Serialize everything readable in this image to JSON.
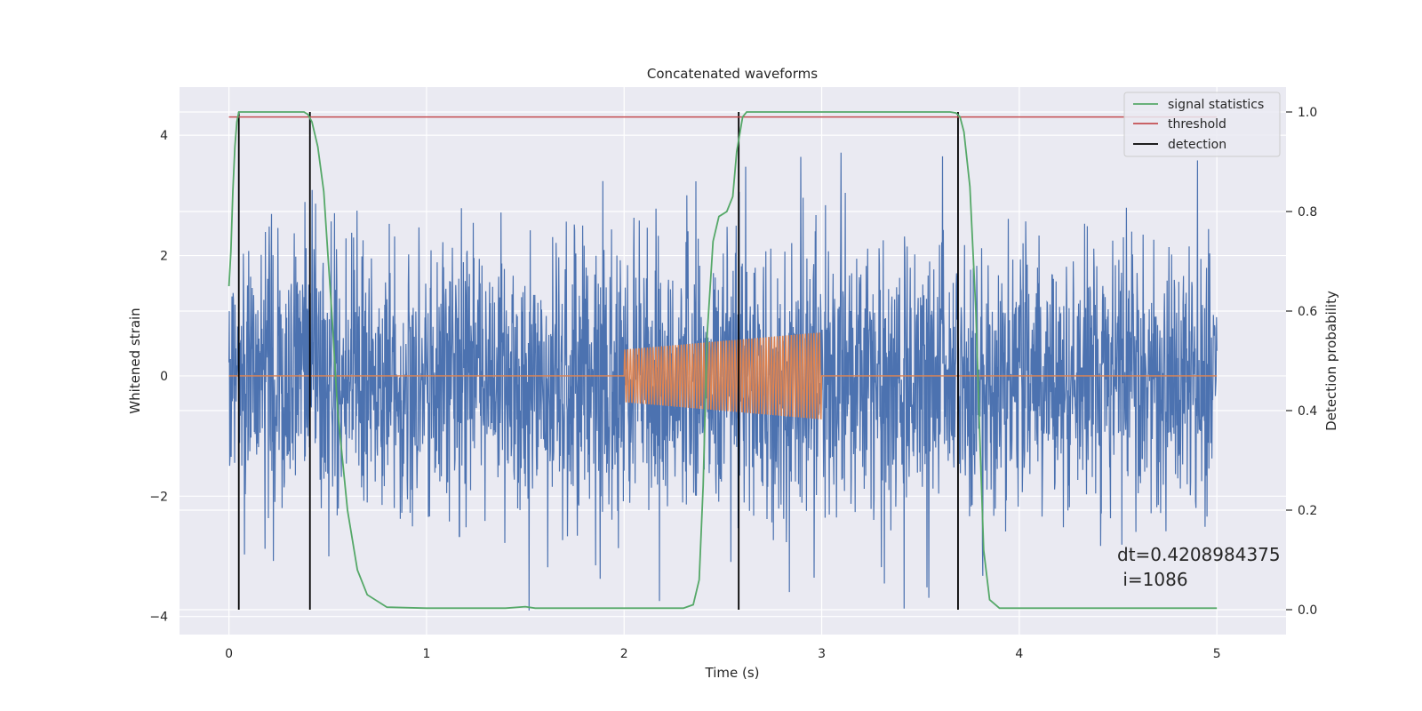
{
  "chart_data": {
    "type": "line",
    "title": "Concatenated waveforms",
    "xlabel": "Time (s)",
    "ylabel": "Whitened strain",
    "y2label": "Detection probability",
    "xlim": [
      -0.25,
      5.35
    ],
    "ylim": [
      -4.3,
      4.8
    ],
    "y2lim": [
      -0.05,
      1.05
    ],
    "xticks": [
      0,
      1,
      2,
      3,
      4,
      5
    ],
    "yticks": [
      -4,
      -2,
      0,
      2,
      4
    ],
    "y2ticks": [
      0.0,
      0.2,
      0.4,
      0.6,
      0.8,
      1.0
    ],
    "xtick_labels": [
      "0",
      "1",
      "2",
      "3",
      "4",
      "5"
    ],
    "ytick_labels": [
      "−4",
      "−2",
      "0",
      "2",
      "4"
    ],
    "y2tick_labels": [
      "0.0",
      "0.2",
      "0.4",
      "0.6",
      "0.8",
      "1.0"
    ],
    "grid": true,
    "legend_position": "top-right",
    "colors": {
      "noise": "#4c72b0",
      "template": "#dd8452",
      "signal": "#55a868",
      "threshold": "#c44e52",
      "detection": "#000000",
      "plot_bg": "#eaeaf2",
      "grid": "#ffffff"
    },
    "series": [
      {
        "name": "signal statistics",
        "axis": "right",
        "x": [
          0.0,
          0.01,
          0.02,
          0.03,
          0.04,
          0.05,
          0.07,
          0.1,
          0.2,
          0.3,
          0.38,
          0.4,
          0.42,
          0.45,
          0.48,
          0.5,
          0.52,
          0.55,
          0.6,
          0.65,
          0.7,
          0.8,
          1.0,
          1.4,
          1.5,
          1.55,
          1.6,
          2.0,
          2.3,
          2.35,
          2.38,
          2.4,
          2.42,
          2.45,
          2.48,
          2.5,
          2.52,
          2.55,
          2.57,
          2.6,
          2.62,
          2.7,
          3.0,
          3.5,
          3.65,
          3.68,
          3.7,
          3.72,
          3.75,
          3.78,
          3.8,
          3.82,
          3.85,
          3.9,
          5.0
        ],
        "y": [
          0.65,
          0.72,
          0.84,
          0.93,
          0.98,
          1.0,
          1.0,
          1.0,
          1.0,
          1.0,
          1.0,
          0.995,
          0.98,
          0.93,
          0.84,
          0.72,
          0.6,
          0.4,
          0.2,
          0.08,
          0.03,
          0.005,
          0.003,
          0.003,
          0.006,
          0.003,
          0.003,
          0.003,
          0.003,
          0.01,
          0.06,
          0.25,
          0.55,
          0.74,
          0.79,
          0.795,
          0.8,
          0.83,
          0.92,
          0.99,
          1.0,
          1.0,
          1.0,
          1.0,
          1.0,
          0.998,
          0.99,
          0.96,
          0.85,
          0.6,
          0.35,
          0.12,
          0.02,
          0.003,
          0.003
        ]
      },
      {
        "name": "threshold",
        "axis": "right",
        "x": [
          0.0,
          5.0
        ],
        "y": [
          0.99,
          0.99
        ]
      },
      {
        "name": "detection",
        "axis": "right",
        "x": [
          0.05,
          0.41,
          2.58,
          3.69
        ],
        "y": [
          1.0,
          1.0,
          1.0,
          1.0
        ]
      }
    ],
    "noise": {
      "x_start": 0.0,
      "x_end": 5.0,
      "amplitude": 1.2
    },
    "template": {
      "x_start": 2.0,
      "x_end": 3.0,
      "amplitude_start": 0.45,
      "amplitude_end": 0.75
    },
    "annotation": {
      "line1": "dt=0.4208984375",
      "line2": " i=1086"
    }
  }
}
